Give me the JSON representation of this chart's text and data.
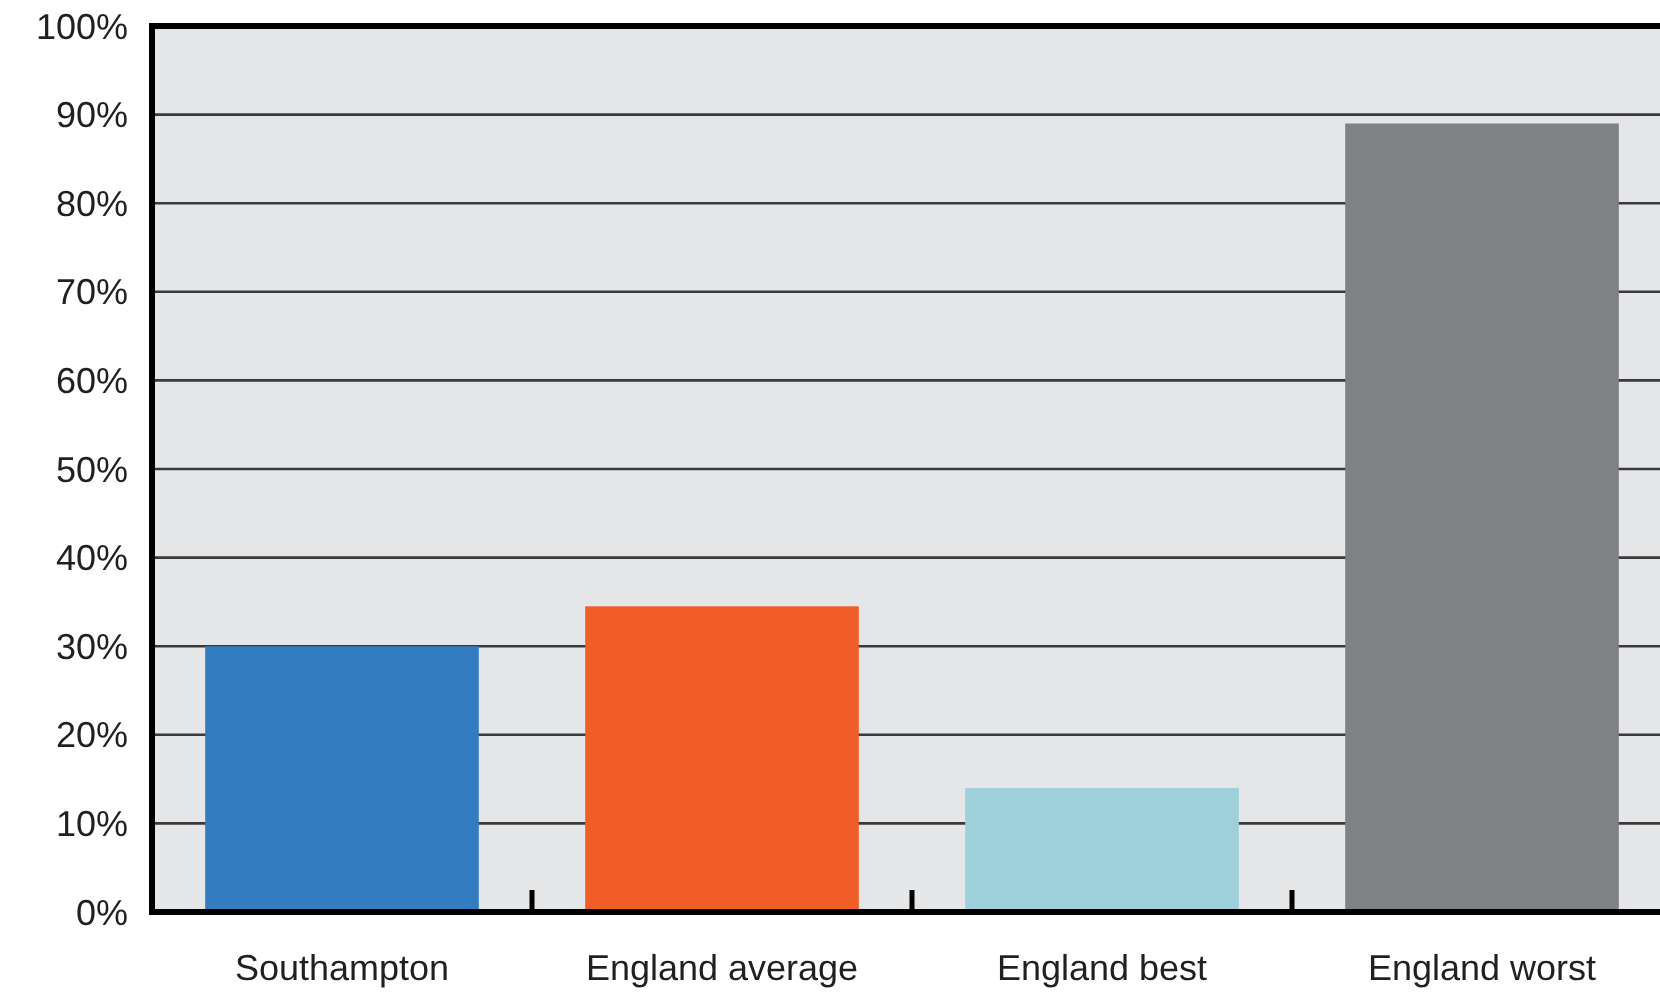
{
  "chart_data": {
    "type": "bar",
    "categories": [
      "Southampton",
      "England average",
      "England best",
      "England worst"
    ],
    "values": [
      30,
      34.5,
      14,
      89
    ],
    "colors": [
      "#337cc0",
      "#f15d27",
      "#9dd0db",
      "#808184"
    ],
    "ylim": [
      0,
      100
    ],
    "yticks": [
      {
        "value": 0,
        "label": "0%"
      },
      {
        "value": 10,
        "label": "10%"
      },
      {
        "value": 20,
        "label": "20%"
      },
      {
        "value": 30,
        "label": "30%"
      },
      {
        "value": 40,
        "label": "40%"
      },
      {
        "value": 50,
        "label": "50%"
      },
      {
        "value": 60,
        "label": "60%"
      },
      {
        "value": 70,
        "label": "70%"
      },
      {
        "value": 80,
        "label": "80%"
      },
      {
        "value": 90,
        "label": "90%"
      },
      {
        "value": 100,
        "label": "100%"
      }
    ],
    "grid": "y"
  }
}
